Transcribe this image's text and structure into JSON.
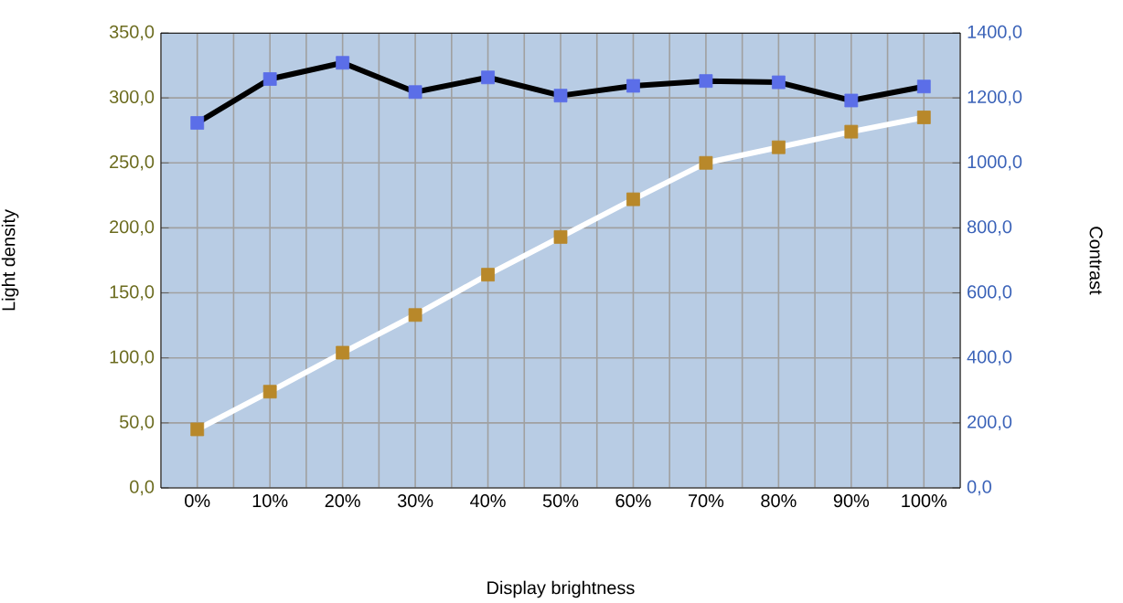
{
  "chart_data": {
    "type": "line",
    "xlabel": "Display brightness",
    "ylabel": "Light density",
    "y2label": "Contrast",
    "categories": [
      "0%",
      "10%",
      "20%",
      "30%",
      "40%",
      "50%",
      "60%",
      "70%",
      "80%",
      "90%",
      "100%"
    ],
    "series": [
      {
        "color": "#ffffff",
        "colors": [
          "#b8882a",
          "#b8882a",
          "#b8882a",
          "#b8882a",
          "#b8882a",
          "#b8882a",
          "#b8882a",
          "#b8882a",
          "#b8882a",
          "#b8882a",
          "#b8882a"
        ],
        "values": [
          45,
          74,
          104,
          133,
          164,
          193,
          222,
          250,
          262,
          274,
          285
        ]
      },
      {
        "axis": "y2",
        "color": "#000000",
        "colors": [
          "#5b6ee8",
          "#5b6ee8",
          "#5b6ee8",
          "#5b6ee8",
          "#5b6ee8",
          "#5b6ee8",
          "#5b6ee8",
          "#5b6ee8",
          "#5b6ee8",
          "#5b6ee8",
          "#5b6ee8"
        ],
        "values": [
          1123,
          1258,
          1308,
          1218,
          1263,
          1207,
          1237,
          1252,
          1248,
          1192,
          1235
        ]
      }
    ],
    "ylim": [
      0,
      350
    ],
    "yticks": [
      {
        "value": 0,
        "label": "0,0"
      },
      {
        "value": 50,
        "label": "50,0"
      },
      {
        "value": 100,
        "label": "100,0"
      },
      {
        "value": 150,
        "label": "150,0"
      },
      {
        "value": 200,
        "label": "200,0"
      },
      {
        "value": 250,
        "label": "250,0"
      },
      {
        "value": 300,
        "label": "300,0"
      },
      {
        "value": 350,
        "label": "350,0"
      }
    ],
    "y2lim": [
      0,
      1400
    ],
    "y2ticks": [
      {
        "value": 0,
        "label": "0,0"
      },
      {
        "value": 200,
        "label": "200,0"
      },
      {
        "value": 400,
        "label": "400,0"
      },
      {
        "value": 600,
        "label": "600,0"
      },
      {
        "value": 800,
        "label": "800,0"
      },
      {
        "value": 1000,
        "label": "1000,0"
      },
      {
        "value": 1200,
        "label": "1200,0"
      },
      {
        "value": 1400,
        "label": "1400,0"
      }
    ],
    "grid": true,
    "marker": "square",
    "line_style": "solid"
  }
}
